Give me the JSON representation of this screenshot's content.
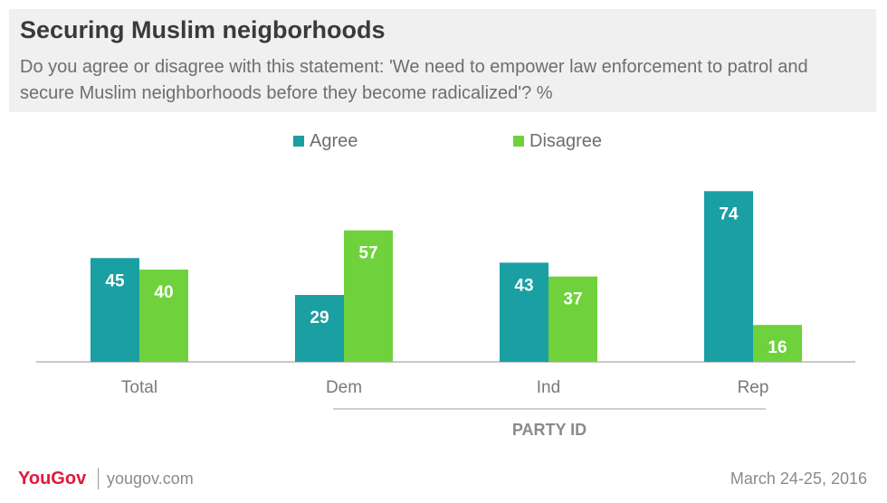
{
  "header": {
    "title": "Securing Muslim neigborhoods",
    "subtitle": "Do you agree or disagree with this statement: 'We need to empower law enforcement to patrol and secure Muslim neighborhoods before they become radicalized'? %"
  },
  "chart_data": {
    "type": "bar",
    "categories": [
      "Total",
      "Dem",
      "Ind",
      "Rep"
    ],
    "series": [
      {
        "name": "Agree",
        "values": [
          45,
          29,
          43,
          74
        ],
        "color": "#1a9fa3"
      },
      {
        "name": "Disagree",
        "values": [
          40,
          57,
          37,
          16
        ],
        "color": "#6fd13c"
      }
    ],
    "group_label": "PARTY ID",
    "ylim": [
      0,
      80
    ],
    "grid": false,
    "legend_position": "top-center"
  },
  "footer": {
    "brand": "YouGov",
    "site": "yougov.com",
    "date": "March 24-25, 2016"
  }
}
